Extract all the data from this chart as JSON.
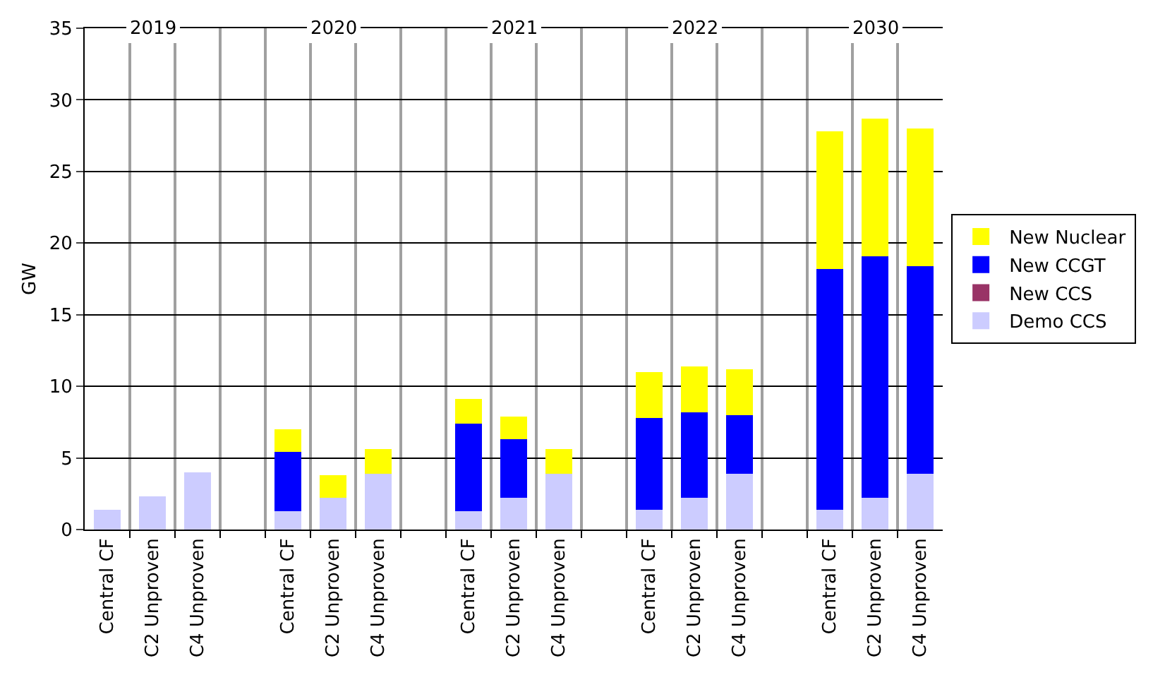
{
  "chart_data": {
    "type": "bar",
    "stacked": true,
    "ylabel": "GW",
    "ylim": [
      0,
      35
    ],
    "yticks": [
      0,
      5,
      10,
      15,
      20,
      25,
      30,
      35
    ],
    "grid": true,
    "legend": "right",
    "annotations": [
      "2019",
      "2020",
      "2021",
      "2022",
      "2030"
    ],
    "categories": [
      "Central CF",
      "C2 Unproven",
      "C4 Unproven",
      null,
      "Central CF",
      "C2 Unproven",
      "C4 Unproven",
      null,
      "Central CF",
      "C2 Unproven",
      "C4 Unproven",
      null,
      "Central CF",
      "C2 Unproven",
      "C4 Unproven",
      null,
      "Central CF",
      "C2 Unproven",
      "C4 Unproven"
    ],
    "series": [
      {
        "name": "Demo CCS",
        "color": "#ccccff",
        "values": [
          1.4,
          2.3,
          4.0,
          null,
          1.3,
          2.2,
          3.9,
          null,
          1.3,
          2.2,
          3.9,
          null,
          1.4,
          2.2,
          3.9,
          null,
          1.4,
          2.2,
          3.9
        ]
      },
      {
        "name": "New CCS",
        "color": "#993366",
        "values": [
          0,
          0,
          0,
          null,
          0,
          0,
          0,
          null,
          0,
          0,
          0,
          null,
          0,
          0,
          0,
          null,
          0,
          0,
          0
        ]
      },
      {
        "name": "New CCGT",
        "color": "#0000ff",
        "values": [
          0,
          0,
          0,
          null,
          4.1,
          0,
          0,
          null,
          6.1,
          4.1,
          0,
          null,
          6.4,
          6.0,
          4.1,
          null,
          16.8,
          16.9,
          14.5
        ]
      },
      {
        "name": "New Nuclear",
        "color": "#ffff00",
        "values": [
          0,
          0,
          0,
          null,
          1.6,
          1.6,
          1.7,
          null,
          1.7,
          1.6,
          1.7,
          null,
          3.2,
          3.2,
          3.2,
          null,
          9.6,
          9.6,
          9.6
        ]
      }
    ]
  }
}
